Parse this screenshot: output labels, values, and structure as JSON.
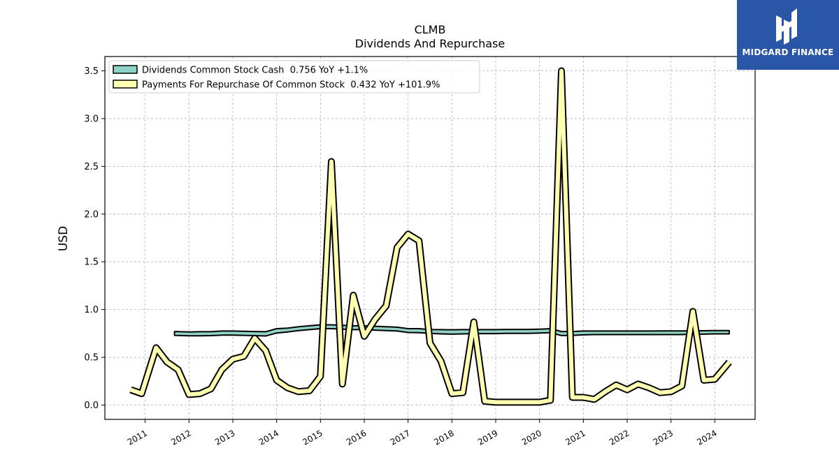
{
  "brand": {
    "name": "MIDGARD FINANCE",
    "accent": "#2a56a8"
  },
  "chart_data": {
    "type": "line",
    "title": "CLMB",
    "subtitle": "Dividends And Repurchase",
    "ylabel": "USD",
    "xlabel": "",
    "ylim": [
      -0.15,
      3.65
    ],
    "xlim": [
      2010.08,
      2024.92
    ],
    "yticks": [
      0.0,
      0.5,
      1.0,
      1.5,
      2.0,
      2.5,
      3.0,
      3.5
    ],
    "ytick_labels": [
      "0.0",
      "0.5",
      "1.0",
      "1.5",
      "2.0",
      "2.5",
      "3.0",
      "3.5"
    ],
    "xticks": [
      2011,
      2012,
      2013,
      2014,
      2015,
      2016,
      2017,
      2018,
      2019,
      2020,
      2021,
      2022,
      2023,
      2024
    ],
    "xtick_labels": [
      "2011",
      "2012",
      "2013",
      "2014",
      "2015",
      "2016",
      "2017",
      "2018",
      "2019",
      "2020",
      "2021",
      "2022",
      "2023",
      "2024"
    ],
    "grid": true,
    "legend_position": "upper-left",
    "series": [
      {
        "name": "Dividends Common Stock Cash  0.756 YoY +1.1%",
        "style": "band",
        "color": "#8ed3c5",
        "x": [
          2011.67,
          2012.0,
          2012.25,
          2012.5,
          2012.75,
          2013.0,
          2013.25,
          2013.5,
          2013.75,
          2014.0,
          2014.25,
          2014.5,
          2014.75,
          2015.0,
          2015.25,
          2015.5,
          2015.75,
          2016.0,
          2016.25,
          2016.5,
          2016.75,
          2017.0,
          2017.25,
          2017.5,
          2017.75,
          2018.0,
          2018.25,
          2018.5,
          2018.75,
          2019.0,
          2019.25,
          2019.5,
          2019.75,
          2020.0,
          2020.25,
          2020.5,
          2020.75,
          2021.0,
          2021.25,
          2021.5,
          2021.75,
          2022.0,
          2022.25,
          2022.5,
          2022.75,
          2023.0,
          2023.25,
          2023.5,
          2023.75,
          2024.0,
          2024.33
        ],
        "upper": [
          0.77,
          0.765,
          0.768,
          0.768,
          0.775,
          0.775,
          0.773,
          0.77,
          0.768,
          0.8,
          0.805,
          0.82,
          0.83,
          0.84,
          0.84,
          0.835,
          0.83,
          0.83,
          0.825,
          0.82,
          0.815,
          0.8,
          0.8,
          0.79,
          0.79,
          0.788,
          0.79,
          0.79,
          0.79,
          0.79,
          0.792,
          0.792,
          0.792,
          0.795,
          0.8,
          0.77,
          0.77,
          0.775,
          0.775,
          0.775,
          0.775,
          0.775,
          0.775,
          0.775,
          0.776,
          0.776,
          0.776,
          0.778,
          0.778,
          0.78,
          0.78
        ],
        "lower": [
          0.73,
          0.725,
          0.725,
          0.727,
          0.733,
          0.733,
          0.73,
          0.727,
          0.723,
          0.755,
          0.765,
          0.78,
          0.79,
          0.8,
          0.8,
          0.795,
          0.79,
          0.79,
          0.785,
          0.78,
          0.775,
          0.76,
          0.758,
          0.75,
          0.745,
          0.742,
          0.745,
          0.748,
          0.748,
          0.748,
          0.75,
          0.75,
          0.75,
          0.755,
          0.758,
          0.728,
          0.73,
          0.735,
          0.738,
          0.738,
          0.738,
          0.738,
          0.738,
          0.738,
          0.738,
          0.738,
          0.738,
          0.742,
          0.742,
          0.745,
          0.745
        ]
      },
      {
        "name": "Payments For Repurchase Of Common Stock  0.432 YoY +101.9%",
        "style": "thick-line",
        "color": "#ffffb2",
        "x": [
          2010.67,
          2010.92,
          2011.25,
          2011.5,
          2011.75,
          2012.0,
          2012.25,
          2012.5,
          2012.75,
          2013.0,
          2013.25,
          2013.5,
          2013.75,
          2014.0,
          2014.25,
          2014.5,
          2014.75,
          2015.0,
          2015.25,
          2015.5,
          2015.75,
          2016.0,
          2016.25,
          2016.5,
          2016.75,
          2017.0,
          2017.25,
          2017.5,
          2017.75,
          2018.0,
          2018.25,
          2018.5,
          2018.75,
          2019.0,
          2019.25,
          2019.5,
          2019.75,
          2020.0,
          2020.25,
          2020.5,
          2020.75,
          2021.0,
          2021.25,
          2021.5,
          2021.75,
          2022.0,
          2022.25,
          2022.5,
          2022.75,
          2023.0,
          2023.25,
          2023.5,
          2023.75,
          2024.0,
          2024.33
        ],
        "values": [
          0.16,
          0.12,
          0.6,
          0.45,
          0.37,
          0.11,
          0.12,
          0.17,
          0.37,
          0.48,
          0.51,
          0.7,
          0.57,
          0.26,
          0.18,
          0.14,
          0.15,
          0.3,
          2.55,
          0.22,
          1.15,
          0.72,
          0.9,
          1.04,
          1.65,
          1.79,
          1.72,
          0.65,
          0.46,
          0.12,
          0.13,
          0.87,
          0.04,
          0.03,
          0.03,
          0.03,
          0.03,
          0.03,
          0.05,
          3.5,
          0.08,
          0.08,
          0.06,
          0.14,
          0.21,
          0.16,
          0.22,
          0.18,
          0.13,
          0.14,
          0.2,
          0.98,
          0.26,
          0.27,
          0.45
        ]
      }
    ]
  }
}
